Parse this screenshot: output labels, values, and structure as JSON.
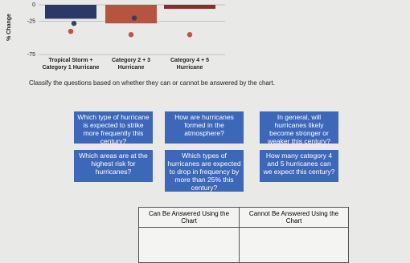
{
  "chart": {
    "y_axis_label": "% Change",
    "ylim": [
      -75,
      0
    ],
    "yticks": [
      0,
      -25,
      -75
    ],
    "categories": [
      [
        "Tropical Storm +",
        "Category 1 Hurricane"
      ],
      [
        "Category 2 + 3",
        "Hurricane"
      ],
      [
        "Category 4 + 5",
        "Hurricane"
      ]
    ],
    "bars": {
      "colors": [
        "#2b3966",
        "#b5553f",
        "#8a2e2a"
      ],
      "values": [
        -21,
        -28,
        -6
      ]
    },
    "dots": [
      {
        "color": "#3a3f55",
        "values": [
          -28,
          -20,
          null
        ]
      },
      {
        "color": "#c8503c",
        "values": [
          -40,
          -45,
          -45
        ]
      }
    ]
  },
  "instruction": "Classify the questions based on whether they can or cannot be answered by the chart.",
  "cards": [
    "Which type of hurricane is expected to strike more frequently this century?",
    "How are hurricanes formed in the atmosphere?",
    "In general, will hurricanes likely become stronger or weaker this century?",
    "Which areas are at the highest risk for hurricanes?",
    "Which types of hurricanes are expected to drop in frequency by more than 25% this century?",
    "How many category 4 and 5 hurricanes can we expect this century?"
  ],
  "table": {
    "headers": [
      "Can Be Answered Using the Chart",
      "Cannot Be Answered Using the Chart"
    ]
  }
}
